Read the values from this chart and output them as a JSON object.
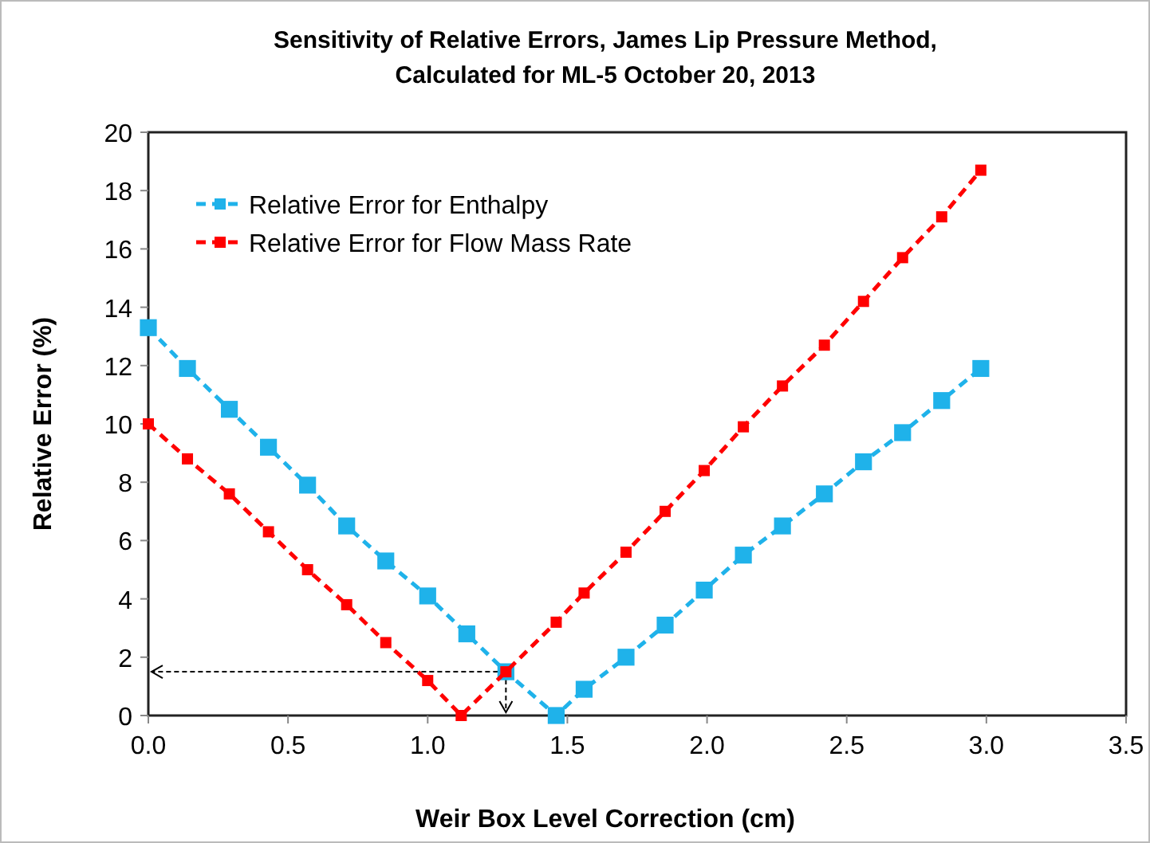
{
  "chart_data": {
    "type": "line",
    "title": "Sensitivity of Relative Errors, James Lip Pressure Method, Calculated for ML-5 October 20, 2013",
    "xlabel": "Weir Box Level Correction (cm)",
    "ylabel": "Relative Error  (%)",
    "xlim": [
      0,
      3.5
    ],
    "xticks": [
      {
        "value": 0,
        "label": "0.0"
      },
      {
        "value": 0.5,
        "label": "0.5"
      },
      {
        "value": 1,
        "label": "1.0"
      },
      {
        "value": 1.5,
        "label": "1.5"
      },
      {
        "value": 2,
        "label": "2.0"
      },
      {
        "value": 2.5,
        "label": "2.5"
      },
      {
        "value": 3,
        "label": "3.0"
      },
      {
        "value": 3.5,
        "label": "3.5"
      }
    ],
    "ylim": [
      0,
      20
    ],
    "yticks": [
      0,
      2,
      4,
      6,
      8,
      10,
      12,
      14,
      16,
      18,
      20
    ],
    "grid": false,
    "legend": "top left",
    "marker": "square",
    "line_style": "dashed",
    "series": [
      {
        "name": "Relative Error for Enthalpy",
        "color": "#1fb2ea",
        "x": [
          0,
          0.14,
          0.29,
          0.43,
          0.57,
          0.71,
          0.85,
          1.0,
          1.14,
          1.28,
          1.46,
          1.56,
          1.71,
          1.85,
          1.99,
          2.13,
          2.27,
          2.42,
          2.56,
          2.7,
          2.84,
          2.98
        ],
        "values": [
          13.3,
          11.9,
          10.5,
          9.2,
          7.9,
          6.5,
          5.3,
          4.1,
          2.8,
          1.5,
          0,
          0.9,
          2.0,
          3.1,
          4.3,
          5.5,
          6.5,
          7.6,
          8.7,
          9.7,
          10.8,
          11.9
        ]
      },
      {
        "name": "Relative Error for Flow Mass Rate",
        "color": "#ff0000",
        "x": [
          0,
          0.14,
          0.29,
          0.43,
          0.57,
          0.71,
          0.85,
          1.0,
          1.12,
          1.28,
          1.46,
          1.56,
          1.71,
          1.85,
          1.99,
          2.13,
          2.27,
          2.42,
          2.56,
          2.7,
          2.84,
          2.98
        ],
        "values": [
          10.0,
          8.8,
          7.6,
          6.3,
          5.0,
          3.8,
          2.5,
          1.2,
          0,
          1.5,
          3.2,
          4.2,
          5.6,
          7.0,
          8.4,
          9.9,
          11.3,
          12.7,
          14.2,
          15.7,
          17.1,
          18.7
        ]
      }
    ]
  }
}
